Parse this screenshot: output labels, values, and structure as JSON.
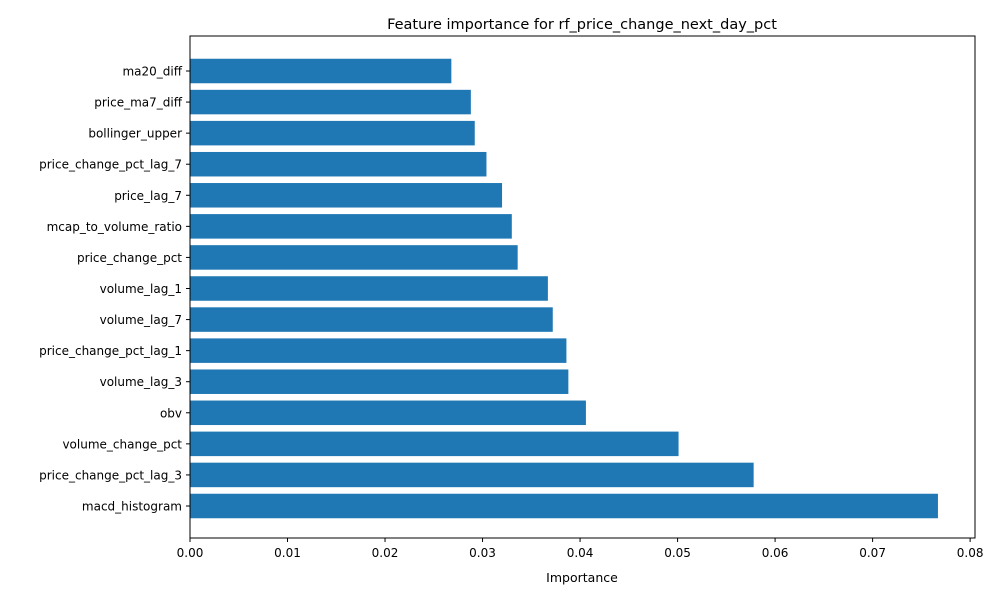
{
  "chart_data": {
    "type": "bar",
    "orientation": "horizontal",
    "title": "Feature importance for rf_price_change_next_day_pct",
    "xlabel": "Importance",
    "ylabel": "",
    "xlim": [
      0,
      0.0805
    ],
    "xticks": [
      0.0,
      0.01,
      0.02,
      0.03,
      0.04,
      0.05,
      0.06,
      0.07,
      0.08
    ],
    "xtick_labels": [
      "0.00",
      "0.01",
      "0.02",
      "0.03",
      "0.04",
      "0.05",
      "0.06",
      "0.07",
      "0.08"
    ],
    "grid": false,
    "legend": "none",
    "bar_color": "#1f77b4",
    "categories": [
      "ma20_diff",
      "price_ma7_diff",
      "bollinger_upper",
      "price_change_pct_lag_7",
      "price_lag_7",
      "mcap_to_volume_ratio",
      "price_change_pct",
      "volume_lag_1",
      "volume_lag_7",
      "price_change_pct_lag_1",
      "volume_lag_3",
      "obv",
      "volume_change_pct",
      "price_change_pct_lag_3",
      "macd_histogram"
    ],
    "values": [
      0.0268,
      0.0288,
      0.0292,
      0.0304,
      0.032,
      0.033,
      0.0336,
      0.0367,
      0.0372,
      0.0386,
      0.0388,
      0.0406,
      0.0501,
      0.0578,
      0.0767
    ]
  }
}
